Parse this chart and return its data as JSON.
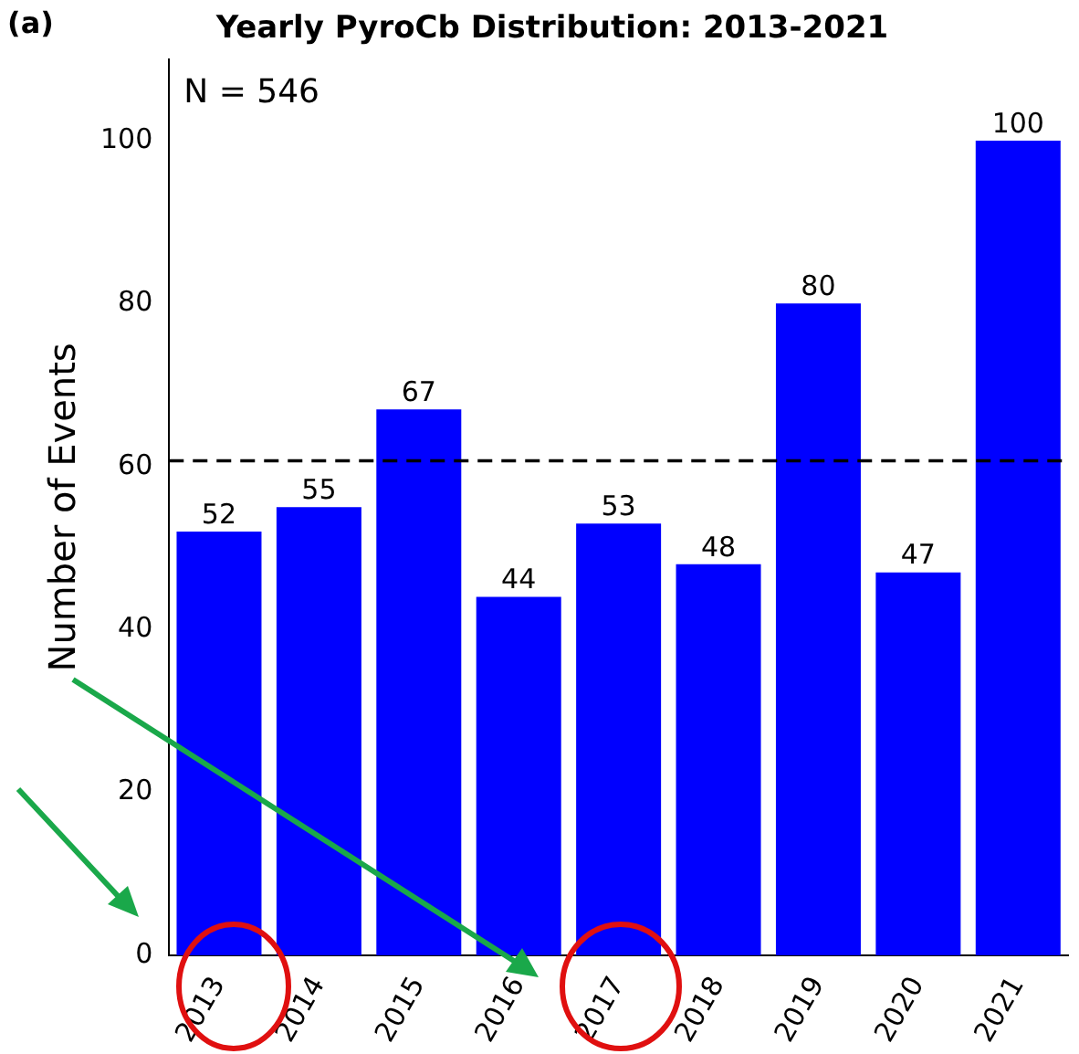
{
  "chart_data": {
    "type": "bar",
    "title": "Yearly PyroCb Distribution: 2013-2021",
    "ylabel": "Number of Events",
    "categories": [
      "2013",
      "2014",
      "2015",
      "2016",
      "2017",
      "2018",
      "2019",
      "2020",
      "2021"
    ],
    "values": [
      52,
      55,
      67,
      44,
      53,
      48,
      80,
      47,
      100
    ],
    "color": "#0000ff",
    "ylim": [
      0,
      110
    ],
    "yticks": [
      0,
      20,
      40,
      60,
      80,
      100
    ],
    "grid": false,
    "legend": false,
    "data_labels": true,
    "ref_lines": [
      {
        "axis": "y",
        "value": 60.7,
        "color": "#000000",
        "line_style": "dashed"
      }
    ],
    "annotations": [
      "(a)",
      "N = 546"
    ]
  }
}
